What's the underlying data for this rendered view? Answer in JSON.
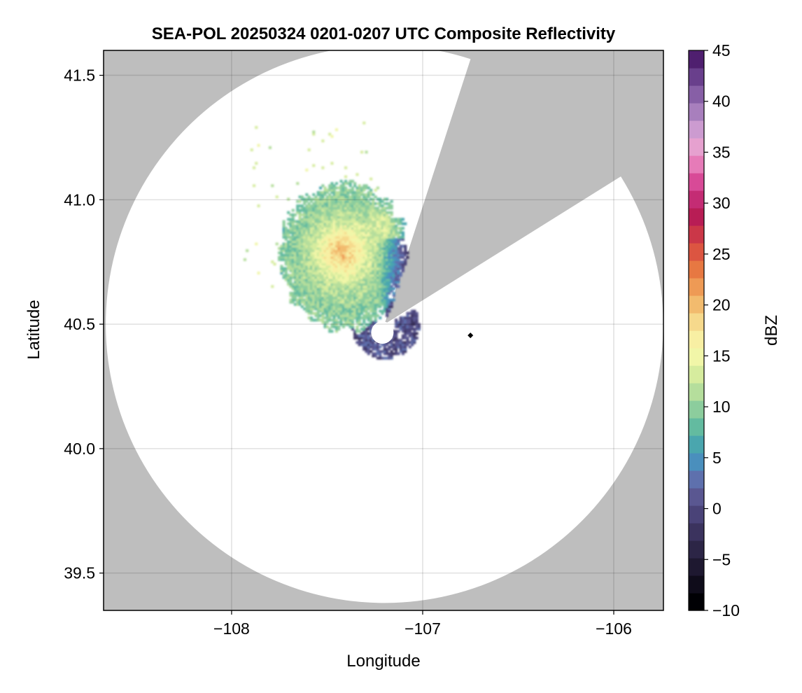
{
  "chart_data": {
    "type": "heatmap",
    "title": "SEA-POL 20250324 0201-0207 UTC Composite Reflectivity",
    "xlabel": "Longitude",
    "ylabel": "Latitude",
    "xlim": [
      -108.67,
      -105.74
    ],
    "ylim": [
      39.35,
      41.6
    ],
    "x_ticks": [
      -108,
      -107,
      -106
    ],
    "x_tick_labels": [
      "−108",
      "−107",
      "−106"
    ],
    "y_ticks": [
      39.5,
      40.0,
      40.5,
      41.0,
      41.5
    ],
    "y_tick_labels": [
      "39.5",
      "40.0",
      "40.5",
      "41.0",
      "41.5"
    ],
    "grid": true,
    "background_color": "#bebebe",
    "radar_coverage": {
      "center_lon": -107.2,
      "center_lat": 40.5,
      "max_range_deg_lat": 1.12,
      "min_range_deg_lat": 0.05,
      "blocked_sector_azimuths_deg": [
        18,
        58
      ]
    },
    "marker": {
      "lon": -106.75,
      "lat": 40.455,
      "shape": "diamond",
      "color": "#000000"
    },
    "echo_region": {
      "description_points": "approximate echo field NW of radar",
      "reflectivity_range_dbz": [
        -3,
        24
      ]
    },
    "colorbar": {
      "label": "dBZ",
      "min": -10,
      "max": 45,
      "step": 2.5,
      "ticks": [
        -10,
        -5,
        0,
        5,
        10,
        15,
        20,
        25,
        30,
        35,
        40,
        45
      ],
      "tick_labels": [
        "−10",
        "−5",
        "0",
        "5",
        "10",
        "15",
        "20",
        "25",
        "30",
        "35",
        "40",
        "45"
      ],
      "colors": [
        "#000004",
        "#0f0c1a",
        "#1e1830",
        "#2c2546",
        "#3b335e",
        "#4a4378",
        "#5a5791",
        "#5e70ad",
        "#4a8fbd",
        "#4aa6ae",
        "#63bba0",
        "#8ccd9d",
        "#b5de9c",
        "#d6ec9e",
        "#f1f6a8",
        "#f8efa3",
        "#f6d98c",
        "#f2bb6e",
        "#ee9a55",
        "#e77842",
        "#dc5541",
        "#cb3748",
        "#b81d55",
        "#c42c74",
        "#d84a97",
        "#e67bb8",
        "#e6a1cf",
        "#cc9bd0",
        "#a87fbd",
        "#875fa6",
        "#693f8c",
        "#4f1f6f"
      ]
    }
  }
}
